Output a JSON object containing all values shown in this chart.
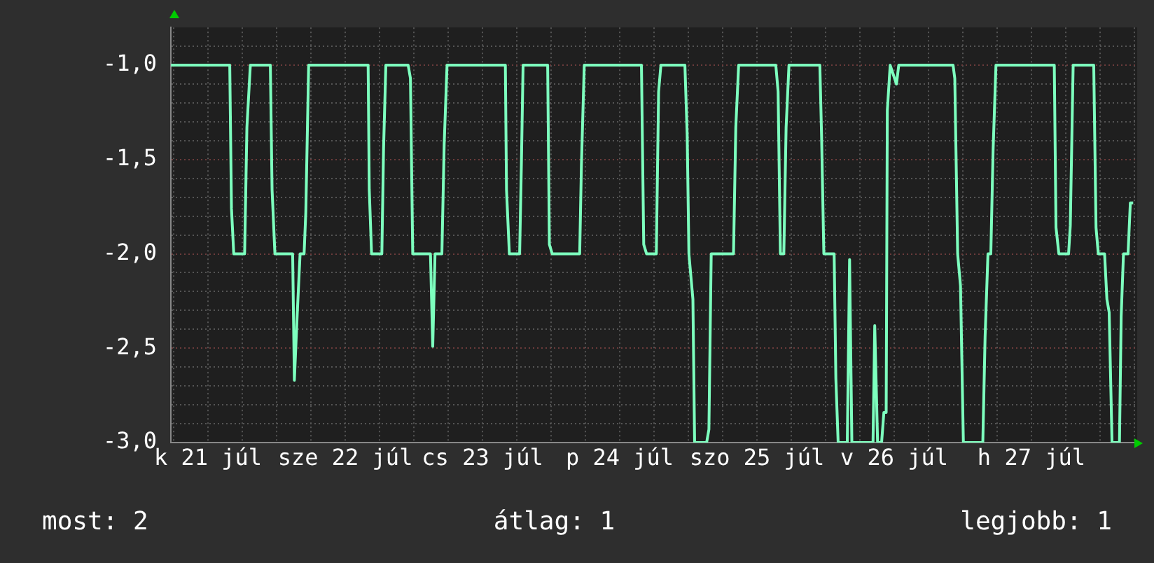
{
  "chart_data": {
    "type": "line",
    "x": [
      "--07-21T05:30",
      "--07-21T15:48",
      "--07-21T16:06",
      "--07-21T16:30",
      "--07-21T18:24",
      "--07-21T18:48",
      "--07-21T19:24",
      "--07-21T22:54",
      "--07-21T23:12",
      "--07-21T23:42",
      "--07-22T02:48",
      "--07-22T03:06",
      "--07-22T03:36",
      "--07-22T04:06",
      "--07-22T04:48",
      "--07-22T05:06",
      "--07-22T05:36",
      "--07-22T16:00",
      "--07-22T16:12",
      "--07-22T16:36",
      "--07-22T18:24",
      "--07-22T18:42",
      "--07-22T19:06",
      "--07-22T23:00",
      "--07-22T23:24",
      "--07-22T23:48",
      "--07-23T02:54",
      "--07-23T03:18",
      "--07-23T03:42",
      "--07-23T04:54",
      "--07-23T05:18",
      "--07-23T05:48",
      "--07-23T16:00",
      "--07-23T16:12",
      "--07-23T16:42",
      "--07-23T18:30",
      "--07-23T18:48",
      "--07-23T19:06",
      "--07-23T23:24",
      "--07-23T23:42",
      "--07-24T00:12",
      "--07-24T05:00",
      "--07-24T05:18",
      "--07-24T05:48",
      "--07-24T15:48",
      "--07-24T16:12",
      "--07-24T16:42",
      "--07-24T18:24",
      "--07-24T18:48",
      "--07-24T19:12",
      "--07-24T23:24",
      "--07-24T23:48",
      "--07-25T00:06",
      "--07-25T00:48",
      "--07-25T01:06",
      "--07-25T03:12",
      "--07-25T03:36",
      "--07-25T04:00",
      "--07-25T07:54",
      "--07-25T08:18",
      "--07-25T08:48",
      "--07-25T15:18",
      "--07-25T15:42",
      "--07-25T16:06",
      "--07-25T16:42",
      "--07-25T17:06",
      "--07-25T17:36",
      "--07-25T23:00",
      "--07-25T23:18",
      "--07-25T23:42",
      "--07-26T01:30",
      "--07-26T01:48",
      "--07-26T02:12",
      "--07-26T03:48",
      "--07-26T04:12",
      "--07-26T04:36",
      "--07-26T08:18",
      "--07-26T08:36",
      "--07-26T09:06",
      "--07-26T09:48",
      "--07-26T10:12",
      "--07-26T10:36",
      "--07-26T10:48",
      "--07-26T11:18",
      "--07-26T12:24",
      "--07-26T12:48",
      "--07-26T22:18",
      "--07-26T22:36",
      "--07-26T23:06",
      "--07-26T23:36",
      "--07-27T00:06",
      "--07-27T03:30",
      "--07-27T03:54",
      "--07-27T04:24",
      "--07-27T04:54",
      "--07-27T05:18",
      "--07-27T05:48",
      "--07-27T16:00",
      "--07-27T16:18",
      "--07-27T16:48",
      "--07-27T18:30",
      "--07-27T18:48",
      "--07-27T19:18",
      "--07-27T22:54",
      "--07-27T23:18",
      "--07-27T23:42",
      "--07-28T00:48",
      "--07-28T01:12",
      "--07-28T01:36",
      "--07-28T02:06",
      "--07-28T03:24",
      "--07-28T03:42",
      "--07-28T04:06",
      "--07-28T04:54",
      "--07-28T05:18",
      "--07-28T05:48"
    ],
    "series": [
      {
        "color": "#7dffbe",
        "values": [
          -1.0,
          -1.0,
          -1.76,
          -2.0,
          -2.0,
          -1.33,
          -1.0,
          -1.0,
          -1.66,
          -2.0,
          -2.0,
          -2.67,
          -2.32,
          -2.0,
          -2.0,
          -1.78,
          -1.0,
          -1.0,
          -1.66,
          -2.0,
          -2.0,
          -1.44,
          -1.0,
          -1.0,
          -1.07,
          -2.0,
          -2.0,
          -2.49,
          -2.0,
          -2.0,
          -1.42,
          -1.0,
          -1.0,
          -1.66,
          -2.0,
          -2.0,
          -1.53,
          -1.0,
          -1.0,
          -1.95,
          -2.0,
          -2.0,
          -1.53,
          -1.0,
          -1.0,
          -1.95,
          -2.0,
          -2.0,
          -1.14,
          -1.0,
          -1.0,
          -1.37,
          -2.0,
          -2.24,
          -3.0,
          -3.0,
          -2.93,
          -2.0,
          -2.0,
          -1.33,
          -1.0,
          -1.0,
          -1.14,
          -2.0,
          -2.0,
          -1.33,
          -1.0,
          -1.0,
          -1.37,
          -2.0,
          -2.0,
          -2.66,
          -3.0,
          -3.0,
          -2.03,
          -3.0,
          -3.0,
          -2.38,
          -3.0,
          -3.0,
          -2.84,
          -2.84,
          -1.24,
          -1.0,
          -1.1,
          -1.0,
          -1.0,
          -1.07,
          -2.0,
          -2.17,
          -3.0,
          -3.0,
          -2.44,
          -2.0,
          -2.0,
          -1.45,
          -1.0,
          -1.0,
          -1.86,
          -2.0,
          -2.0,
          -1.85,
          -1.0,
          -1.0,
          -1.86,
          -2.0,
          -2.0,
          -2.24,
          -2.31,
          -3.0,
          -3.0,
          -2.33,
          -2.0,
          -2.0,
          -1.73,
          -1.73
        ]
      }
    ],
    "xlim": [
      "--07-21T05:30",
      "--07-28T06:30"
    ],
    "xticks": [
      {
        "value": "--07-21T06:00",
        "label": null
      },
      {
        "value": "--07-21T12:00",
        "label": "k 21 júl"
      },
      {
        "value": "--07-21T18:00",
        "label": null
      },
      {
        "value": "--07-22T00:00",
        "label": null
      },
      {
        "value": "--07-22T06:00",
        "label": null
      },
      {
        "value": "--07-22T12:00",
        "label": "sze 22 júl"
      },
      {
        "value": "--07-22T18:00",
        "label": null
      },
      {
        "value": "--07-23T00:00",
        "label": null
      },
      {
        "value": "--07-23T06:00",
        "label": null
      },
      {
        "value": "--07-23T12:00",
        "label": "cs 23 júl"
      },
      {
        "value": "--07-23T18:00",
        "label": null
      },
      {
        "value": "--07-24T00:00",
        "label": null
      },
      {
        "value": "--07-24T06:00",
        "label": null
      },
      {
        "value": "--07-24T12:00",
        "label": "p 24 júl"
      },
      {
        "value": "--07-24T18:00",
        "label": null
      },
      {
        "value": "--07-25T00:00",
        "label": null
      },
      {
        "value": "--07-25T06:00",
        "label": null
      },
      {
        "value": "--07-25T12:00",
        "label": "szo 25 júl"
      },
      {
        "value": "--07-25T18:00",
        "label": null
      },
      {
        "value": "--07-26T00:00",
        "label": null
      },
      {
        "value": "--07-26T06:00",
        "label": null
      },
      {
        "value": "--07-26T12:00",
        "label": "v 26 júl"
      },
      {
        "value": "--07-26T18:00",
        "label": null
      },
      {
        "value": "--07-27T00:00",
        "label": null
      },
      {
        "value": "--07-27T06:00",
        "label": null
      },
      {
        "value": "--07-27T12:00",
        "label": "h 27 júl"
      },
      {
        "value": "--07-27T18:00",
        "label": null
      },
      {
        "value": "--07-28T00:00",
        "label": null
      },
      {
        "value": "--07-28T06:00",
        "label": null
      }
    ],
    "ylim": [
      -3,
      -0.8
    ],
    "yticks": [
      {
        "value": -3,
        "label": "-3,0"
      },
      {
        "value": -2.9,
        "label": null
      },
      {
        "value": -2.8,
        "label": null
      },
      {
        "value": -2.7,
        "label": null
      },
      {
        "value": -2.6,
        "label": null
      },
      {
        "value": -2.5,
        "label": "-2,5"
      },
      {
        "value": -2.4,
        "label": null
      },
      {
        "value": -2.3,
        "label": null
      },
      {
        "value": -2.2,
        "label": null
      },
      {
        "value": -2.1,
        "label": null
      },
      {
        "value": -2,
        "label": "-2,0"
      },
      {
        "value": -1.9,
        "label": null
      },
      {
        "value": -1.8,
        "label": null
      },
      {
        "value": -1.7,
        "label": null
      },
      {
        "value": -1.6,
        "label": null
      },
      {
        "value": -1.5,
        "label": "-1,5"
      },
      {
        "value": -1.4,
        "label": null
      },
      {
        "value": -1.3,
        "label": null
      },
      {
        "value": -1.2,
        "label": null
      },
      {
        "value": -1.1,
        "label": null
      },
      {
        "value": -1,
        "label": "-1,0"
      },
      {
        "value": -0.9,
        "label": null
      }
    ],
    "grid": true,
    "legend": false,
    "annotations": [
      "most: 2",
      "átlag: 1",
      "legjobb: 1"
    ]
  }
}
